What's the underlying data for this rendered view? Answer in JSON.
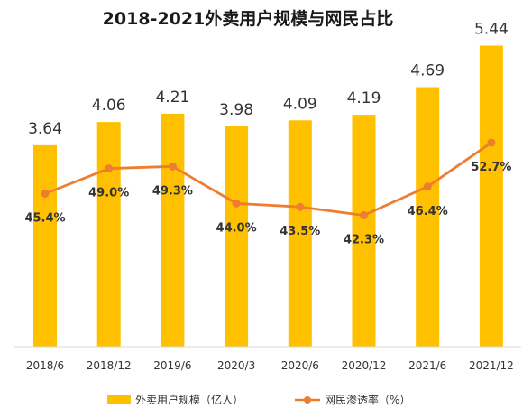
{
  "chart_data": {
    "type": "bar",
    "title": "2018-2021外卖用户规模与网民占比",
    "categories": [
      "2018/6",
      "2018/12",
      "2019/6",
      "2020/3",
      "2020/6",
      "2020/12",
      "2021/6",
      "2021/12"
    ],
    "series": [
      {
        "name": "外卖用户规模（亿人）",
        "type": "bar",
        "values": [
          3.64,
          4.06,
          4.21,
          3.98,
          4.09,
          4.19,
          4.69,
          5.44
        ],
        "labels": [
          "3.64",
          "4.06",
          "4.21",
          "3.98",
          "4.09",
          "4.19",
          "4.69",
          "5.44"
        ],
        "color": "#FFC000"
      },
      {
        "name": "网民渗透率（%）",
        "type": "line",
        "values": [
          45.4,
          49.0,
          49.3,
          44.0,
          43.5,
          42.3,
          46.4,
          52.7
        ],
        "labels": [
          "45.4%",
          "49.0%",
          "49.3%",
          "44.0%",
          "43.5%",
          "42.3%",
          "46.4%",
          "52.7%"
        ],
        "color": "#ED7D31"
      }
    ],
    "legend_position": "bottom",
    "grid": false
  }
}
